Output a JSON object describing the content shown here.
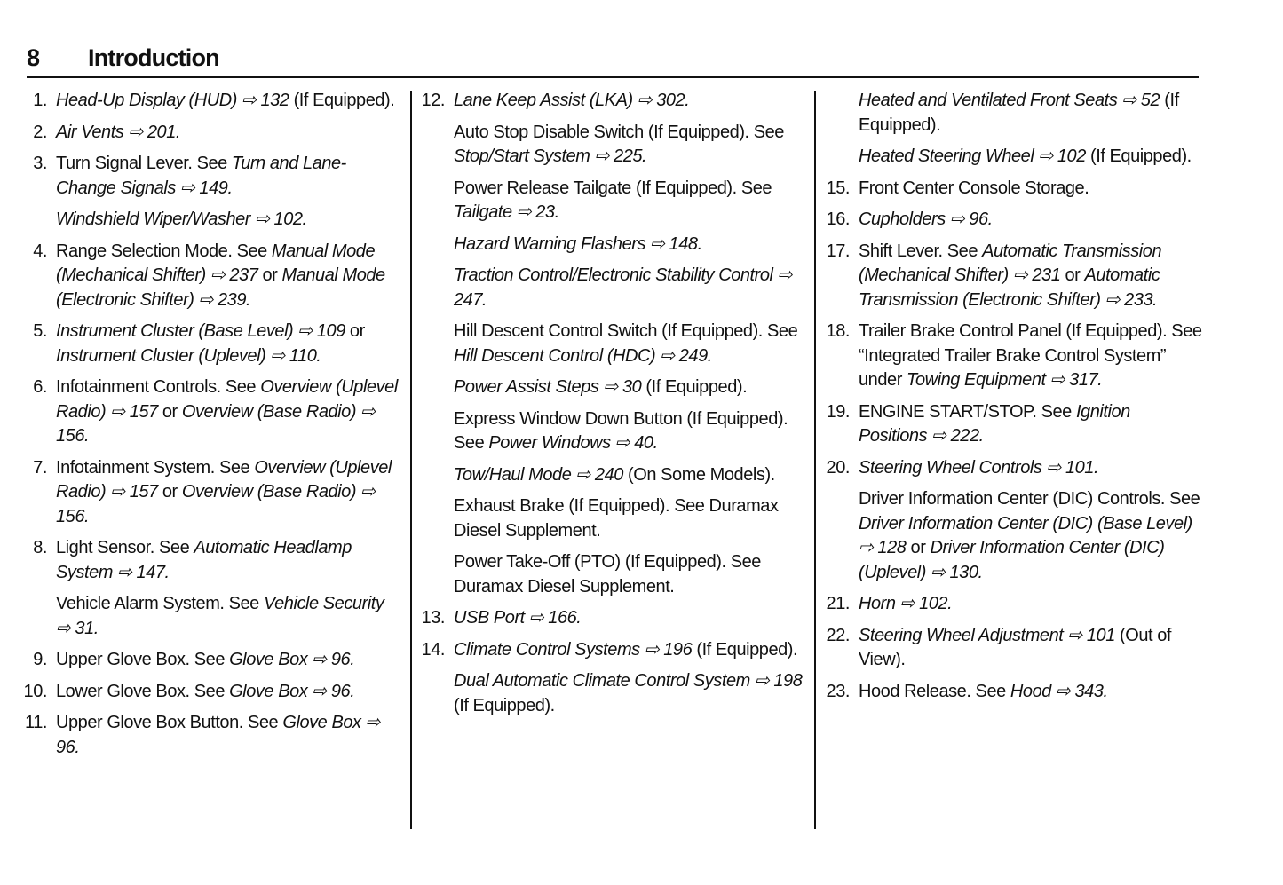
{
  "header": {
    "page_number": "8",
    "title": "Introduction"
  },
  "columns": [
    {
      "items": [
        {
          "num": "1.",
          "segs": [
            {
              "text": "Head-Up Display (HUD) ⇨ 132",
              "italic": true
            },
            {
              "text": " (If Equipped)."
            }
          ]
        },
        {
          "num": "2.",
          "segs": [
            {
              "text": "Air Vents ⇨ 201.",
              "italic": true
            }
          ]
        },
        {
          "num": "3.",
          "segs": [
            {
              "text": "Turn Signal Lever. See "
            },
            {
              "text": "Turn and Lane-Change Signals ⇨ 149.",
              "italic": true
            }
          ]
        },
        {
          "num": "",
          "segs": [
            {
              "text": "Windshield Wiper/Washer ⇨ 102.",
              "italic": true
            }
          ]
        },
        {
          "num": "4.",
          "segs": [
            {
              "text": "Range Selection Mode. See "
            },
            {
              "text": "Manual Mode (Mechanical Shifter) ⇨ 237",
              "italic": true
            },
            {
              "text": " or "
            },
            {
              "text": "Manual Mode (Electronic Shifter) ⇨ 239.",
              "italic": true
            }
          ]
        },
        {
          "num": "5.",
          "segs": [
            {
              "text": "Instrument Cluster (Base Level) ⇨ 109",
              "italic": true
            },
            {
              "text": " or "
            },
            {
              "text": "Instrument Cluster (Uplevel) ⇨ 110.",
              "italic": true
            }
          ]
        },
        {
          "num": "6.",
          "segs": [
            {
              "text": "Infotainment Controls. See "
            },
            {
              "text": "Overview (Uplevel Radio) ⇨ 157",
              "italic": true
            },
            {
              "text": " or "
            },
            {
              "text": "Overview (Base Radio) ⇨ 156.",
              "italic": true
            }
          ]
        },
        {
          "num": "7.",
          "segs": [
            {
              "text": "Infotainment System. See "
            },
            {
              "text": "Overview (Uplevel Radio) ⇨ 157",
              "italic": true
            },
            {
              "text": " or "
            },
            {
              "text": "Overview (Base Radio) ⇨ 156.",
              "italic": true
            }
          ]
        },
        {
          "num": "8.",
          "segs": [
            {
              "text": "Light Sensor. See "
            },
            {
              "text": "Automatic Headlamp System ⇨ 147.",
              "italic": true
            }
          ]
        },
        {
          "num": "",
          "segs": [
            {
              "text": "Vehicle Alarm System. See "
            },
            {
              "text": "Vehicle Security ⇨ 31.",
              "italic": true
            }
          ]
        },
        {
          "num": "9.",
          "segs": [
            {
              "text": "Upper Glove Box. See "
            },
            {
              "text": "Glove Box ⇨ 96.",
              "italic": true
            }
          ]
        },
        {
          "num": "10.",
          "segs": [
            {
              "text": "Lower Glove Box. See "
            },
            {
              "text": "Glove Box ⇨ 96.",
              "italic": true
            }
          ]
        },
        {
          "num": "11.",
          "segs": [
            {
              "text": "Upper Glove Box Button. See "
            },
            {
              "text": "Glove Box ⇨ 96.",
              "italic": true
            }
          ]
        }
      ]
    },
    {
      "items": [
        {
          "num": "12.",
          "segs": [
            {
              "text": "Lane Keep Assist (LKA) ⇨ 302.",
              "italic": true
            }
          ]
        },
        {
          "num": "",
          "segs": [
            {
              "text": "Auto Stop Disable Switch (If Equipped). See "
            },
            {
              "text": "Stop/Start System ⇨ 225.",
              "italic": true
            }
          ]
        },
        {
          "num": "",
          "segs": [
            {
              "text": "Power Release Tailgate (If Equipped). See "
            },
            {
              "text": "Tailgate ⇨ 23.",
              "italic": true
            }
          ]
        },
        {
          "num": "",
          "segs": [
            {
              "text": "Hazard Warning Flashers ⇨ 148.",
              "italic": true
            }
          ]
        },
        {
          "num": "",
          "segs": [
            {
              "text": "Traction Control/Electronic Stability Control ⇨ 247.",
              "italic": true
            }
          ]
        },
        {
          "num": "",
          "segs": [
            {
              "text": "Hill Descent Control Switch (If Equipped). See "
            },
            {
              "text": "Hill Descent Control (HDC) ⇨ 249.",
              "italic": true
            }
          ]
        },
        {
          "num": "",
          "segs": [
            {
              "text": "Power Assist Steps ⇨ 30",
              "italic": true
            },
            {
              "text": " (If Equipped)."
            }
          ]
        },
        {
          "num": "",
          "segs": [
            {
              "text": "Express Window Down Button (If Equipped). See "
            },
            {
              "text": "Power Windows ⇨ 40.",
              "italic": true
            }
          ]
        },
        {
          "num": "",
          "segs": [
            {
              "text": "Tow/Haul Mode ⇨ 240",
              "italic": true
            },
            {
              "text": " (On Some Models)."
            }
          ]
        },
        {
          "num": "",
          "segs": [
            {
              "text": "Exhaust Brake (If Equipped). See Duramax Diesel Supplement."
            }
          ]
        },
        {
          "num": "",
          "segs": [
            {
              "text": "Power Take-Off (PTO) (If Equipped). See Duramax Diesel Supplement."
            }
          ]
        },
        {
          "num": "13.",
          "segs": [
            {
              "text": "USB Port ⇨ 166.",
              "italic": true
            }
          ]
        },
        {
          "num": "14.",
          "segs": [
            {
              "text": "Climate Control Systems ⇨ 196",
              "italic": true
            },
            {
              "text": " (If Equipped)."
            }
          ]
        },
        {
          "num": "",
          "segs": [
            {
              "text": "Dual Automatic Climate Control System ⇨ 198",
              "italic": true
            },
            {
              "text": " (If Equipped)."
            }
          ]
        }
      ]
    },
    {
      "items": [
        {
          "num": "",
          "segs": [
            {
              "text": "Heated and Ventilated Front Seats ⇨ 52",
              "italic": true
            },
            {
              "text": " (If Equipped)."
            }
          ]
        },
        {
          "num": "",
          "segs": [
            {
              "text": "Heated Steering Wheel ⇨ 102",
              "italic": true
            },
            {
              "text": " (If Equipped)."
            }
          ]
        },
        {
          "num": "15.",
          "segs": [
            {
              "text": "Front Center Console Storage."
            }
          ]
        },
        {
          "num": "16.",
          "segs": [
            {
              "text": "Cupholders ⇨ 96.",
              "italic": true
            }
          ]
        },
        {
          "num": "17.",
          "segs": [
            {
              "text": "Shift Lever. See "
            },
            {
              "text": "Automatic Transmission (Mechanical Shifter) ⇨ 231",
              "italic": true
            },
            {
              "text": " or "
            },
            {
              "text": "Automatic Transmission (Electronic Shifter) ⇨ 233.",
              "italic": true
            }
          ]
        },
        {
          "num": "18.",
          "segs": [
            {
              "text": "Trailer Brake Control Panel (If Equipped). See “Integrated Trailer Brake Control System” under "
            },
            {
              "text": "Towing Equipment ⇨ 317.",
              "italic": true
            }
          ]
        },
        {
          "num": "19.",
          "segs": [
            {
              "text": "ENGINE START/STOP. See "
            },
            {
              "text": "Ignition Positions ⇨ 222.",
              "italic": true
            }
          ]
        },
        {
          "num": "20.",
          "segs": [
            {
              "text": "Steering Wheel Controls ⇨ 101.",
              "italic": true
            }
          ]
        },
        {
          "num": "",
          "segs": [
            {
              "text": "Driver Information Center (DIC) Controls. See "
            },
            {
              "text": "Driver Information Center (DIC) (Base Level) ⇨ 128",
              "italic": true
            },
            {
              "text": " or "
            },
            {
              "text": "Driver Information Center (DIC) (Uplevel) ⇨ 130.",
              "italic": true
            }
          ]
        },
        {
          "num": "21.",
          "segs": [
            {
              "text": "Horn ⇨ 102.",
              "italic": true
            }
          ]
        },
        {
          "num": "22.",
          "segs": [
            {
              "text": "Steering Wheel Adjustment ⇨ 101",
              "italic": true
            },
            {
              "text": " (Out of View)."
            }
          ]
        },
        {
          "num": "23.",
          "segs": [
            {
              "text": "Hood Release. See "
            },
            {
              "text": "Hood ⇨ 343.",
              "italic": true
            }
          ]
        }
      ]
    }
  ]
}
